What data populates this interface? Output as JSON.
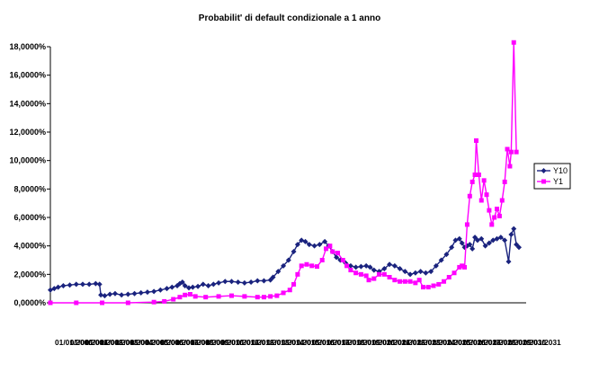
{
  "chart_data": {
    "type": "line",
    "title": "Probabilit' di default condizionale a 1 anno",
    "xlabel": "",
    "ylabel": "",
    "ylim": [
      0,
      18
    ],
    "y_ticks": [
      "0,0000%",
      "2,0000%",
      "4,0000%",
      "6,0000%",
      "8,0000%",
      "10,0000%",
      "12,0000%",
      "14,0000%",
      "16,0000%",
      "18,0000%"
    ],
    "x_tick_labels": [
      "01/01/2000",
      "01/01/2001",
      "01/01/2002",
      "01/01/2003",
      "01/01/2004",
      "01/01/2005",
      "01/01/2006",
      "01/01/2007",
      "01/01/2008",
      "01/01/2009",
      "01/01/2010",
      "01/01/2011",
      "01/01/2012",
      "01/01/2013",
      "01/01/2014",
      "01/01/2015",
      "01/01/2016",
      "01/01/2017",
      "01/01/2018",
      "01/01/2019",
      "01/01/2020",
      "01/01/2021",
      "01/01/2022",
      "01/01/2023",
      "01/01/2024",
      "01/01/2025",
      "01/01/2026",
      "01/01/2027",
      "01/01/2028",
      "01/01/2029",
      "01/01/2030",
      "01/01/2031"
    ],
    "legend_position": "right",
    "grid": false,
    "series": [
      {
        "name": "Y10",
        "color": "#1a237e",
        "marker": "diamond",
        "points": [
          [
            0,
            0.9
          ],
          [
            3,
            1.0
          ],
          [
            6,
            1.1
          ],
          [
            10,
            1.2
          ],
          [
            15,
            1.25
          ],
          [
            20,
            1.3
          ],
          [
            25,
            1.3
          ],
          [
            30,
            1.3
          ],
          [
            35,
            1.35
          ],
          [
            38,
            1.3
          ],
          [
            39,
            0.55
          ],
          [
            42,
            0.5
          ],
          [
            46,
            0.6
          ],
          [
            50,
            0.65
          ],
          [
            55,
            0.55
          ],
          [
            60,
            0.6
          ],
          [
            65,
            0.65
          ],
          [
            70,
            0.7
          ],
          [
            75,
            0.75
          ],
          [
            80,
            0.8
          ],
          [
            85,
            0.9
          ],
          [
            90,
            1.0
          ],
          [
            94,
            1.1
          ],
          [
            98,
            1.2
          ],
          [
            100,
            1.35
          ],
          [
            102,
            1.45
          ],
          [
            104,
            1.2
          ],
          [
            107,
            1.05
          ],
          [
            110,
            1.1
          ],
          [
            114,
            1.15
          ],
          [
            118,
            1.3
          ],
          [
            122,
            1.2
          ],
          [
            126,
            1.3
          ],
          [
            130,
            1.4
          ],
          [
            135,
            1.5
          ],
          [
            140,
            1.5
          ],
          [
            145,
            1.45
          ],
          [
            150,
            1.4
          ],
          [
            155,
            1.45
          ],
          [
            160,
            1.55
          ],
          [
            165,
            1.55
          ],
          [
            170,
            1.6
          ],
          [
            172,
            1.8
          ],
          [
            176,
            2.2
          ],
          [
            180,
            2.6
          ],
          [
            184,
            3.0
          ],
          [
            188,
            3.6
          ],
          [
            191,
            4.1
          ],
          [
            194,
            4.4
          ],
          [
            197,
            4.3
          ],
          [
            200,
            4.1
          ],
          [
            204,
            4.0
          ],
          [
            208,
            4.1
          ],
          [
            212,
            4.3
          ],
          [
            215,
            4.0
          ],
          [
            218,
            3.6
          ],
          [
            221,
            3.2
          ],
          [
            224,
            3.0
          ],
          [
            228,
            2.8
          ],
          [
            232,
            2.6
          ],
          [
            236,
            2.5
          ],
          [
            240,
            2.55
          ],
          [
            244,
            2.6
          ],
          [
            247,
            2.5
          ],
          [
            250,
            2.3
          ],
          [
            254,
            2.2
          ],
          [
            258,
            2.4
          ],
          [
            262,
            2.7
          ],
          [
            266,
            2.6
          ],
          [
            270,
            2.4
          ],
          [
            274,
            2.2
          ],
          [
            278,
            2.0
          ],
          [
            282,
            2.1
          ],
          [
            286,
            2.2
          ],
          [
            290,
            2.1
          ],
          [
            294,
            2.2
          ],
          [
            298,
            2.6
          ],
          [
            302,
            3.0
          ],
          [
            306,
            3.4
          ],
          [
            310,
            3.9
          ],
          [
            313,
            4.4
          ],
          [
            316,
            4.5
          ],
          [
            318,
            4.2
          ],
          [
            320,
            3.9
          ],
          [
            322,
            4.0
          ],
          [
            324,
            4.1
          ],
          [
            326,
            3.8
          ],
          [
            328,
            4.6
          ],
          [
            330,
            4.4
          ],
          [
            333,
            4.5
          ],
          [
            336,
            4.0
          ],
          [
            339,
            4.2
          ],
          [
            342,
            4.4
          ],
          [
            345,
            4.5
          ],
          [
            348,
            4.6
          ],
          [
            351,
            4.4
          ],
          [
            354,
            2.9
          ],
          [
            356,
            4.8
          ],
          [
            358,
            5.2
          ],
          [
            360,
            4.1
          ],
          [
            362,
            3.9
          ]
        ]
      },
      {
        "name": "Y1",
        "color": "#ff00ff",
        "marker": "square",
        "points": [
          [
            0,
            0.0
          ],
          [
            20,
            0.0
          ],
          [
            40,
            0.0
          ],
          [
            60,
            0.0
          ],
          [
            80,
            0.05
          ],
          [
            88,
            0.1
          ],
          [
            95,
            0.25
          ],
          [
            100,
            0.4
          ],
          [
            104,
            0.55
          ],
          [
            108,
            0.6
          ],
          [
            112,
            0.45
          ],
          [
            120,
            0.4
          ],
          [
            130,
            0.45
          ],
          [
            140,
            0.5
          ],
          [
            150,
            0.45
          ],
          [
            160,
            0.4
          ],
          [
            165,
            0.4
          ],
          [
            170,
            0.45
          ],
          [
            175,
            0.5
          ],
          [
            180,
            0.7
          ],
          [
            185,
            0.9
          ],
          [
            188,
            1.3
          ],
          [
            191,
            2.0
          ],
          [
            194,
            2.6
          ],
          [
            198,
            2.7
          ],
          [
            202,
            2.6
          ],
          [
            206,
            2.55
          ],
          [
            210,
            3.0
          ],
          [
            213,
            3.8
          ],
          [
            216,
            4.0
          ],
          [
            218,
            3.6
          ],
          [
            222,
            3.5
          ],
          [
            226,
            3.0
          ],
          [
            229,
            2.6
          ],
          [
            232,
            2.3
          ],
          [
            236,
            2.1
          ],
          [
            240,
            2.0
          ],
          [
            244,
            1.9
          ],
          [
            246,
            1.6
          ],
          [
            250,
            1.7
          ],
          [
            254,
            2.0
          ],
          [
            258,
            2.0
          ],
          [
            262,
            1.8
          ],
          [
            266,
            1.6
          ],
          [
            270,
            1.5
          ],
          [
            274,
            1.5
          ],
          [
            278,
            1.5
          ],
          [
            282,
            1.4
          ],
          [
            285,
            1.6
          ],
          [
            288,
            1.1
          ],
          [
            292,
            1.1
          ],
          [
            296,
            1.2
          ],
          [
            300,
            1.3
          ],
          [
            304,
            1.5
          ],
          [
            308,
            1.8
          ],
          [
            312,
            2.1
          ],
          [
            316,
            2.5
          ],
          [
            318,
            2.6
          ],
          [
            320,
            2.5
          ],
          [
            322,
            5.5
          ],
          [
            324,
            7.5
          ],
          [
            326,
            8.5
          ],
          [
            328,
            9.0
          ],
          [
            329,
            11.4
          ],
          [
            331,
            9.0
          ],
          [
            333,
            7.2
          ],
          [
            335,
            8.6
          ],
          [
            337,
            7.6
          ],
          [
            339,
            6.5
          ],
          [
            341,
            5.5
          ],
          [
            343,
            6.0
          ],
          [
            345,
            6.6
          ],
          [
            347,
            6.1
          ],
          [
            349,
            7.2
          ],
          [
            351,
            8.5
          ],
          [
            353,
            10.8
          ],
          [
            355,
            9.6
          ],
          [
            356,
            10.6
          ],
          [
            358,
            18.3
          ],
          [
            360,
            10.6
          ]
        ]
      }
    ]
  }
}
